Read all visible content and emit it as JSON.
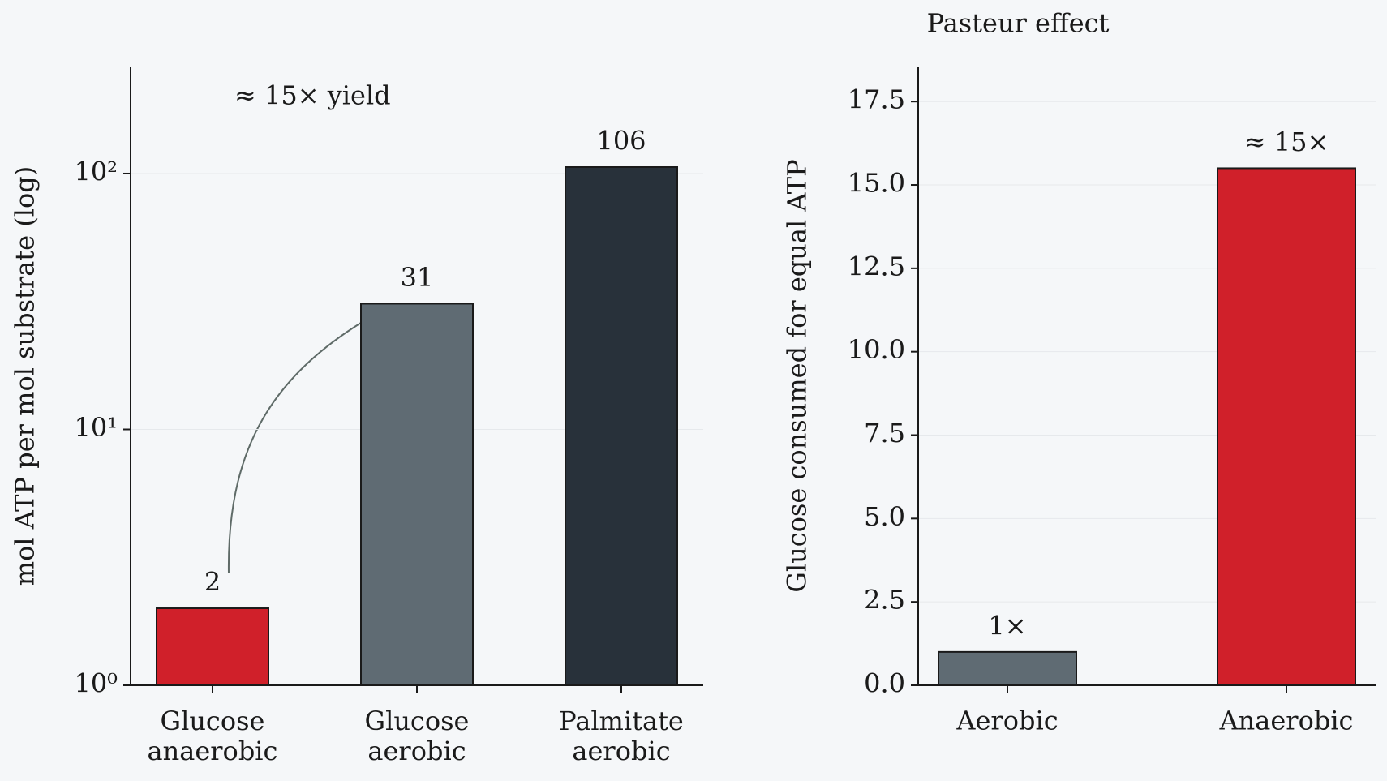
{
  "chart_data": [
    {
      "type": "bar",
      "y_label": "mol ATP per mol substrate (log)",
      "annotation": "≈ 15× yield",
      "categories": [
        "Glucose\nanaerobic",
        "Glucose\naerobic",
        "Palmitate\naerobic"
      ],
      "values": [
        2,
        31,
        106
      ],
      "colors": [
        "#d0202a",
        "#5f6b73",
        "#28313a"
      ],
      "log_scale": true,
      "ylim": [
        1,
        262
      ],
      "yticks": [
        {
          "value": 1,
          "label": "10⁰"
        },
        {
          "value": 10,
          "label": "10¹"
        },
        {
          "value": 100,
          "label": "10²"
        }
      ],
      "grid": true
    },
    {
      "type": "bar",
      "title": "Pasteur effect",
      "y_label": "Glucose consumed for equal ATP",
      "categories": [
        "Aerobic",
        "Anaerobic"
      ],
      "values": [
        1,
        15.5
      ],
      "value_labels": [
        "1×",
        "≈ 15×"
      ],
      "colors": [
        "#5f6b73",
        "#d0202a"
      ],
      "log_scale": false,
      "ylim": [
        0,
        18.55
      ],
      "yticks": [
        {
          "value": 0,
          "label": "0.0"
        },
        2.5,
        {
          "value": 5,
          "label": "5.0"
        },
        7.5,
        {
          "value": 10,
          "label": "10.0"
        },
        12.5,
        {
          "value": 15,
          "label": "15.0"
        },
        17.5
      ],
      "grid": true
    }
  ]
}
